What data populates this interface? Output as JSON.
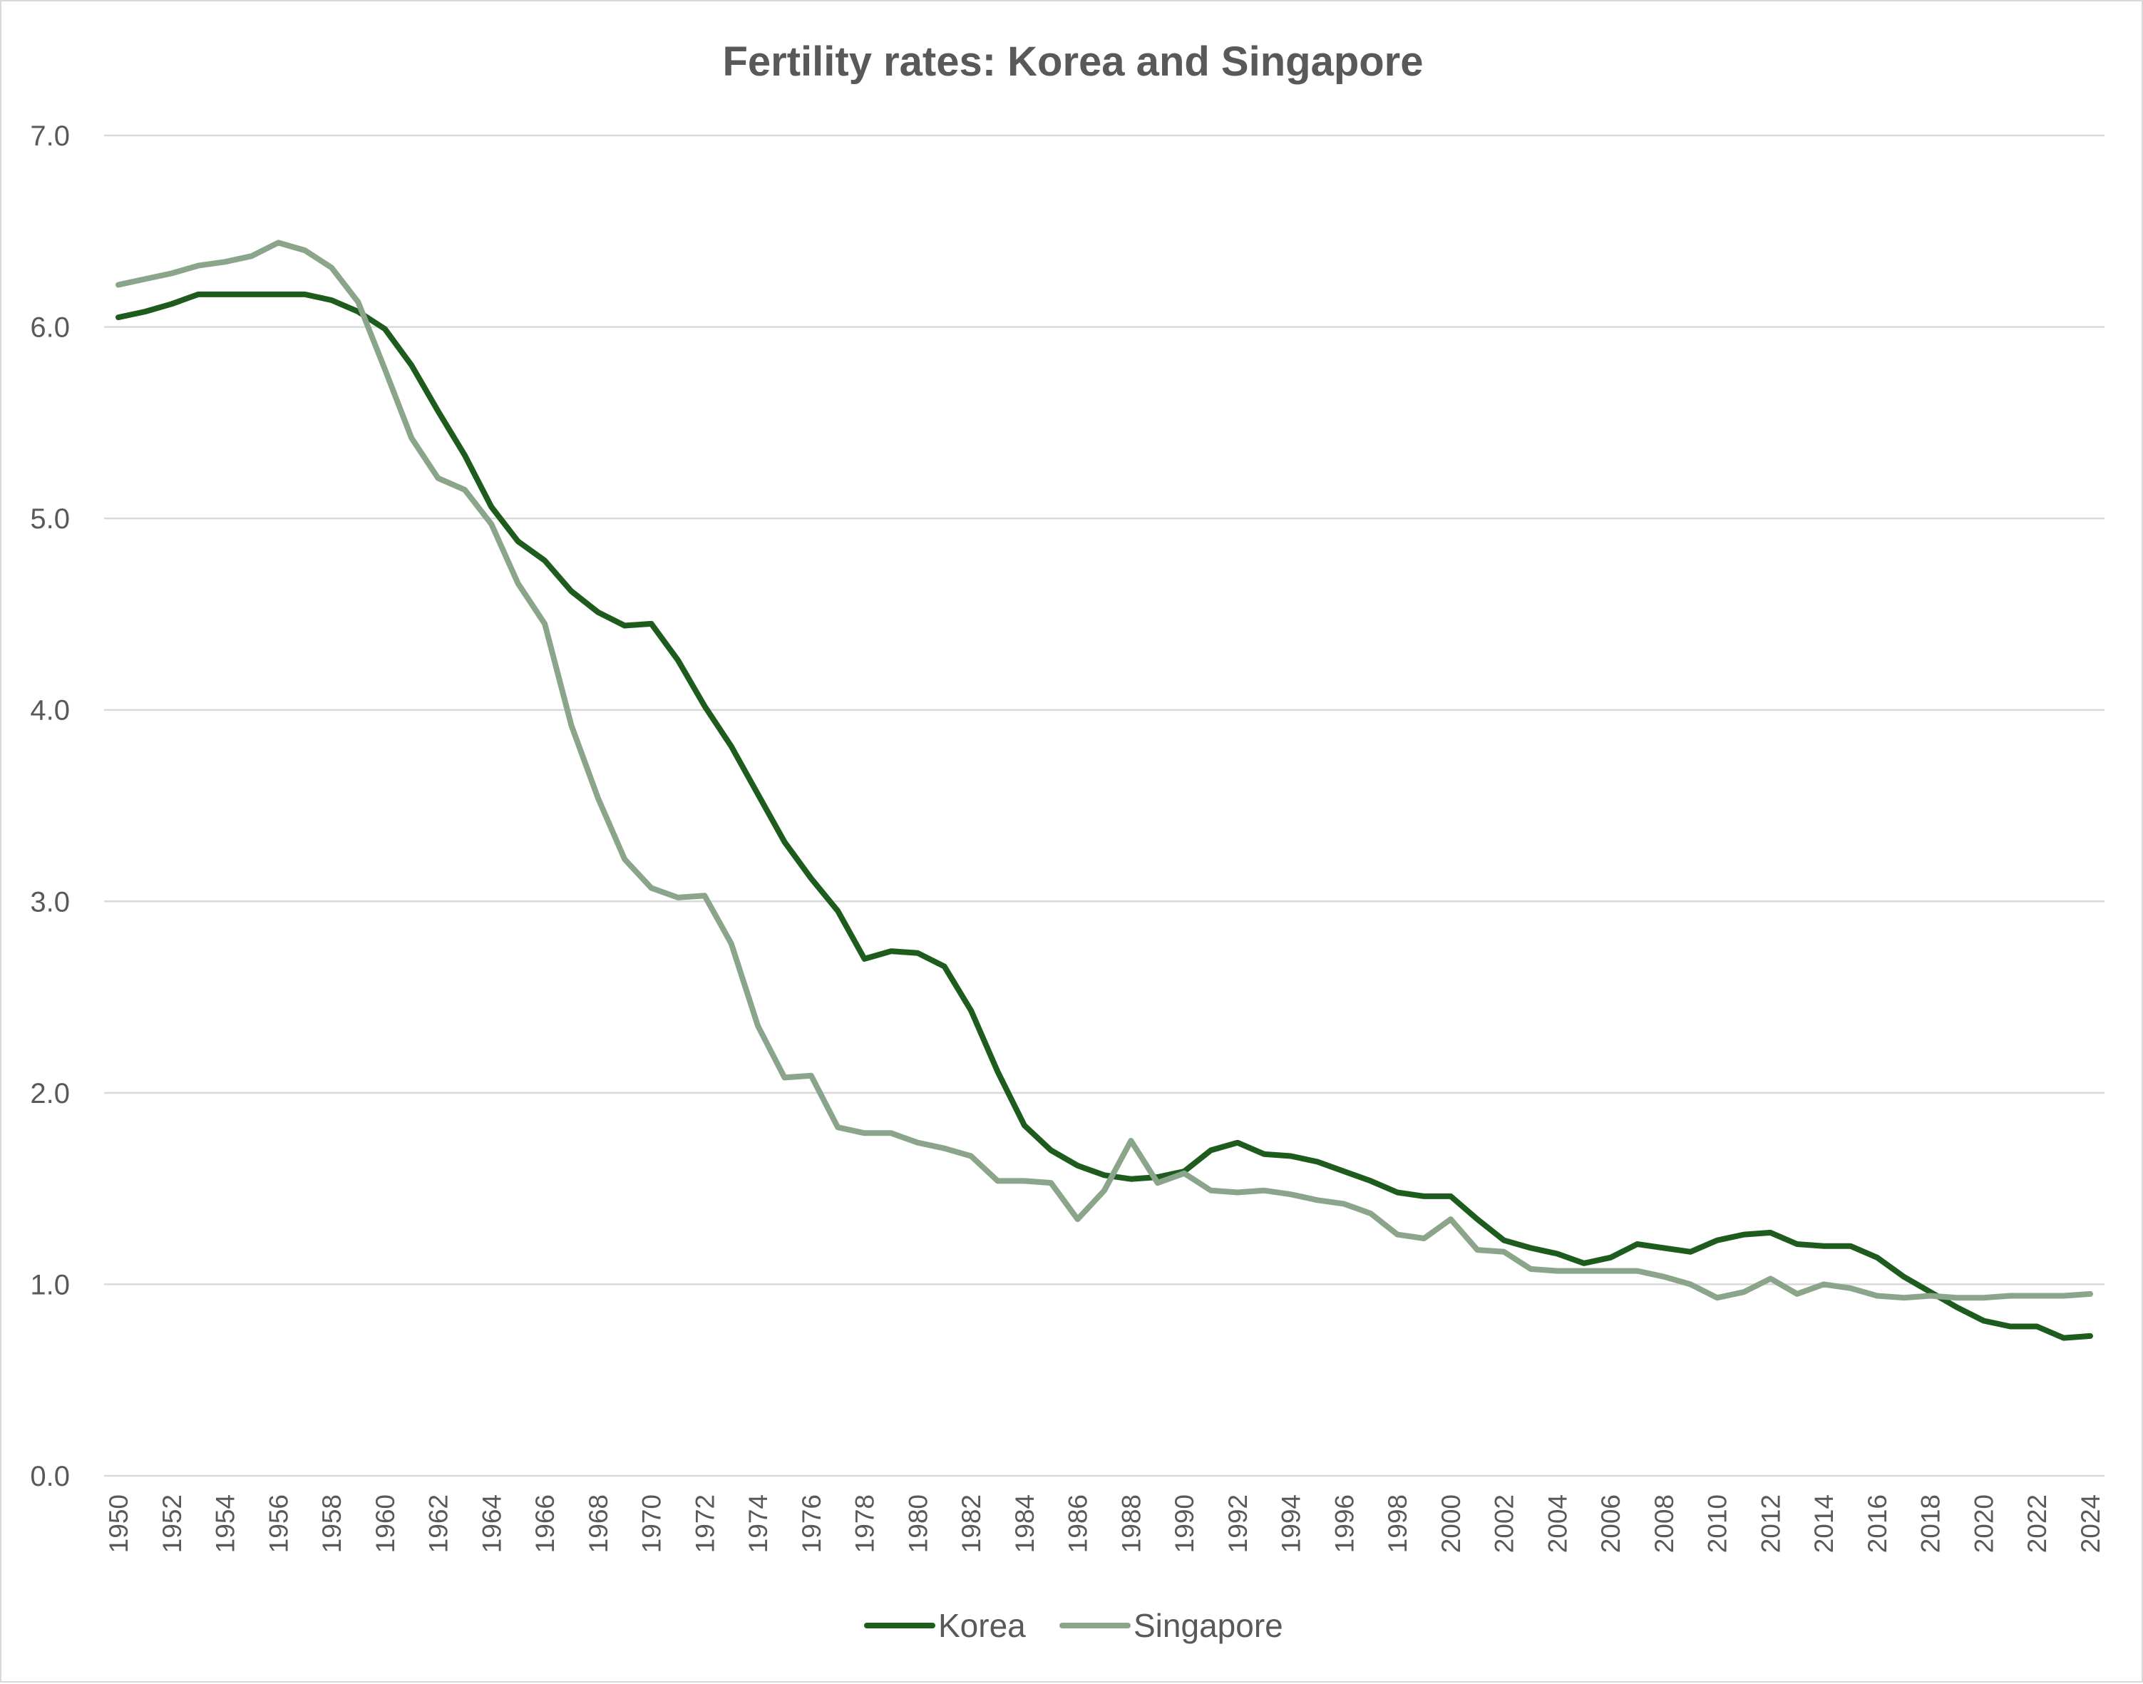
{
  "chart_data": {
    "type": "line",
    "title": "Fertility rates: Korea and Singapore",
    "xlabel": "",
    "ylabel": "",
    "ylim": [
      0,
      7
    ],
    "ytick_labels": [
      "0.0",
      "1.0",
      "2.0",
      "3.0",
      "4.0",
      "5.0",
      "6.0",
      "7.0"
    ],
    "grid": true,
    "legend_position": "bottom",
    "x": [
      1950,
      1951,
      1952,
      1953,
      1954,
      1955,
      1956,
      1957,
      1958,
      1959,
      1960,
      1961,
      1962,
      1963,
      1964,
      1965,
      1966,
      1967,
      1968,
      1969,
      1970,
      1971,
      1972,
      1973,
      1974,
      1975,
      1976,
      1977,
      1978,
      1979,
      1980,
      1981,
      1982,
      1983,
      1984,
      1985,
      1986,
      1987,
      1988,
      1989,
      1990,
      1991,
      1992,
      1993,
      1994,
      1995,
      1996,
      1997,
      1998,
      1999,
      2000,
      2001,
      2002,
      2003,
      2004,
      2005,
      2006,
      2007,
      2008,
      2009,
      2010,
      2011,
      2012,
      2013,
      2014,
      2015,
      2016,
      2017,
      2018,
      2019,
      2020,
      2021,
      2022,
      2023,
      2024
    ],
    "xtick_labels": [
      "1950",
      "1952",
      "1954",
      "1956",
      "1958",
      "1960",
      "1962",
      "1964",
      "1966",
      "1968",
      "1970",
      "1972",
      "1974",
      "1976",
      "1978",
      "1980",
      "1982",
      "1984",
      "1986",
      "1988",
      "1990",
      "1992",
      "1994",
      "1996",
      "1998",
      "2000",
      "2002",
      "2004",
      "2006",
      "2008",
      "2010",
      "2012",
      "2014",
      "2016",
      "2018",
      "2020",
      "2022",
      "2024"
    ],
    "series": [
      {
        "name": "Korea",
        "color": "#1e5c1e",
        "values": [
          6.05,
          6.08,
          6.12,
          6.17,
          6.17,
          6.17,
          6.17,
          6.17,
          6.14,
          6.08,
          5.99,
          5.8,
          5.56,
          5.33,
          5.06,
          4.88,
          4.78,
          4.62,
          4.51,
          4.44,
          4.45,
          4.26,
          4.02,
          3.81,
          3.56,
          3.31,
          3.12,
          2.95,
          2.7,
          2.74,
          2.73,
          2.66,
          2.43,
          2.11,
          1.83,
          1.7,
          1.62,
          1.57,
          1.55,
          1.56,
          1.59,
          1.7,
          1.74,
          1.68,
          1.67,
          1.64,
          1.59,
          1.54,
          1.48,
          1.46,
          1.46,
          1.34,
          1.23,
          1.19,
          1.16,
          1.11,
          1.14,
          1.21,
          1.19,
          1.17,
          1.23,
          1.26,
          1.27,
          1.21,
          1.2,
          1.2,
          1.14,
          1.04,
          0.96,
          0.88,
          0.81,
          0.78,
          0.78,
          0.72,
          0.73
        ]
      },
      {
        "name": "Singapore",
        "color": "#8aa58a",
        "values": [
          6.22,
          6.25,
          6.28,
          6.32,
          6.34,
          6.37,
          6.44,
          6.4,
          6.31,
          6.13,
          5.78,
          5.42,
          5.21,
          5.15,
          4.97,
          4.66,
          4.45,
          3.92,
          3.54,
          3.22,
          3.07,
          3.02,
          3.03,
          2.78,
          2.35,
          2.08,
          2.09,
          1.82,
          1.79,
          1.79,
          1.74,
          1.71,
          1.67,
          1.54,
          1.54,
          1.53,
          1.34,
          1.49,
          1.75,
          1.53,
          1.58,
          1.49,
          1.48,
          1.49,
          1.47,
          1.44,
          1.42,
          1.37,
          1.26,
          1.24,
          1.34,
          1.18,
          1.17,
          1.08,
          1.07,
          1.07,
          1.07,
          1.07,
          1.04,
          1.0,
          0.93,
          0.96,
          1.03,
          0.95,
          1.0,
          0.98,
          0.94,
          0.93,
          0.94,
          0.93,
          0.93,
          0.94,
          0.94,
          0.94,
          0.95
        ]
      }
    ]
  }
}
